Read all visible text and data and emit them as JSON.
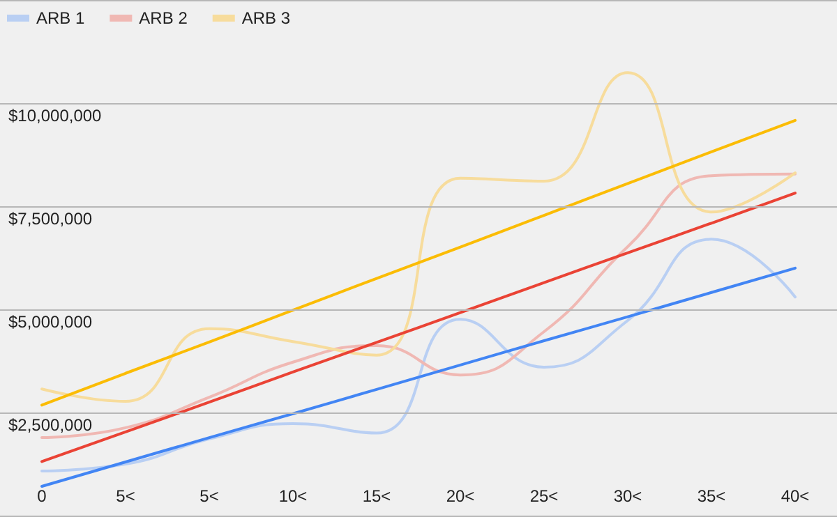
{
  "chart_data": {
    "type": "line",
    "categories": [
      "0",
      "5<",
      "5<",
      "10<",
      "15<",
      "20<",
      "25<",
      "30<",
      "35<",
      "40<"
    ],
    "series": [
      {
        "name": "ARB 1",
        "color": "#b9cff3",
        "values": [
          1080000,
          1250000,
          1860000,
          2230000,
          2000000,
          4760000,
          3600000,
          4730000,
          6700000,
          5300000
        ]
      },
      {
        "name": "ARB 2",
        "color": "#f0b8b3",
        "values": [
          1890000,
          2130000,
          2870000,
          3720000,
          4120000,
          3410000,
          4460000,
          6520000,
          8240000,
          8280000
        ]
      },
      {
        "name": "ARB 3",
        "color": "#f7dc9c",
        "values": [
          3070000,
          2770000,
          4530000,
          4220000,
          3890000,
          8180000,
          8110000,
          10740000,
          7360000,
          8310000
        ]
      },
      {
        "type": "line",
        "color": "#4285f4",
        "values": [
          710000,
          1300000,
          1890000,
          2470000,
          3060000,
          3650000,
          4240000,
          4820000,
          5410000,
          6000000
        ]
      },
      {
        "type": "line",
        "color": "#ea4335",
        "values": [
          1310000,
          2030000,
          2750000,
          3480000,
          4200000,
          4920000,
          5650000,
          6370000,
          7090000,
          7820000
        ]
      },
      {
        "type": "line",
        "color": "#fbbc04",
        "values": [
          2680000,
          3450000,
          4210000,
          4980000,
          5750000,
          6510000,
          7280000,
          8050000,
          8820000,
          9580000
        ]
      }
    ],
    "ylim": [
      0,
      12500000
    ],
    "yticks": [
      {
        "value": 2500000,
        "label": "$2,500,000"
      },
      {
        "value": 5000000,
        "label": "$5,000,000"
      },
      {
        "value": 7500000,
        "label": "$7,500,000"
      },
      {
        "value": 10000000,
        "label": "$10,000,000"
      },
      {
        "value": 12500000,
        "label": null
      }
    ],
    "grid": "y",
    "legend": "top left",
    "marker": "none",
    "line_style": "solid"
  }
}
